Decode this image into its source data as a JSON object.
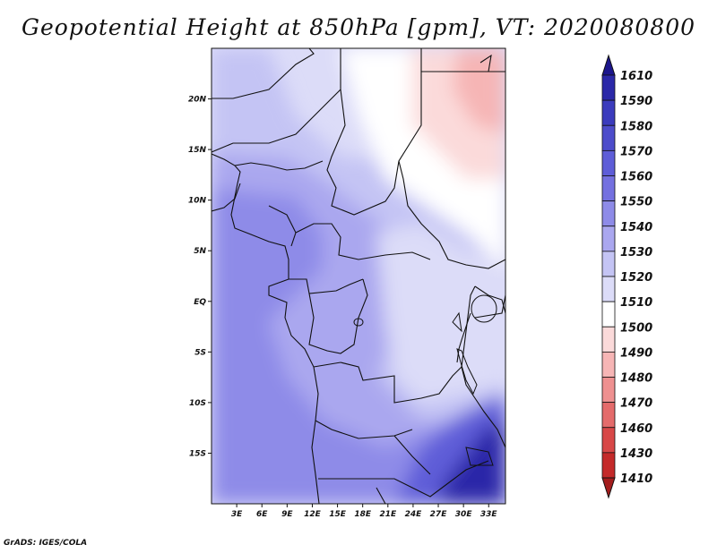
{
  "title": "Geopotential Height at 850hPa [gpm], VT: 2020080800",
  "footer": "GrADS: IGES/COLA",
  "chart_data": {
    "type": "contour-map",
    "variable": "Geopotential Height",
    "level": "850hPa",
    "units": "gpm",
    "valid_time": "2020080800",
    "lon_range": [
      0,
      35
    ],
    "lat_range": [
      -20,
      25
    ],
    "x_ticks": [
      "3E",
      "6E",
      "9E",
      "12E",
      "15E",
      "18E",
      "21E",
      "24E",
      "27E",
      "30E",
      "33E"
    ],
    "y_ticks": [
      "20N",
      "15N",
      "10N",
      "5N",
      "EQ",
      "5S",
      "10S",
      "15S"
    ],
    "colorbar": {
      "levels": [
        "1610",
        "1590",
        "1580",
        "1570",
        "1560",
        "1550",
        "1540",
        "1530",
        "1520",
        "1510",
        "1500",
        "1490",
        "1480",
        "1470",
        "1460",
        "1430",
        "1410"
      ],
      "colors": [
        "#1c168c",
        "#2b28a8",
        "#3b3bbd",
        "#4d4ccb",
        "#5e5dd8",
        "#7470e0",
        "#8e8be8",
        "#aaa7ef",
        "#c4c4f4",
        "#dcdcf8",
        "#ffffff",
        "#fbdada",
        "#f6b5b5",
        "#ee9090",
        "#e46b6b",
        "#d84848",
        "#c42a2a",
        "#a31d1d"
      ]
    }
  }
}
